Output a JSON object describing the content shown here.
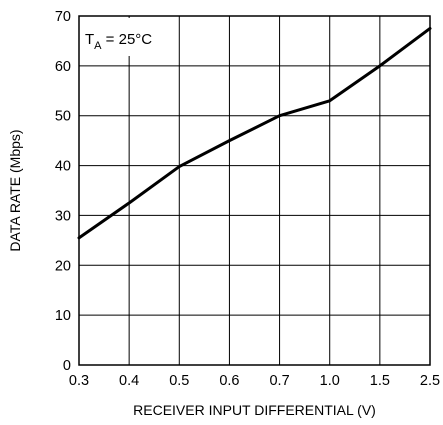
{
  "chart_data": {
    "type": "line",
    "title": "",
    "xlabel": "RECEIVER INPUT DIFFERENTIAL (V)",
    "ylabel": "DATA RATE (Mbps)",
    "x_scale": "categorical (unequal spacing)",
    "categories": [
      "0.3",
      "0.4",
      "0.5",
      "0.6",
      "0.7",
      "1.0",
      "1.5",
      "2.5"
    ],
    "ylim": [
      0,
      70
    ],
    "yticks": [
      0,
      10,
      20,
      30,
      40,
      50,
      60,
      70
    ],
    "grid": true,
    "annotation": {
      "main": "T",
      "subscript": "A",
      "rest": " = 25°C"
    },
    "series": [
      {
        "values": [
          25.5,
          32.5,
          39.8,
          45,
          50,
          53,
          60,
          67.5
        ]
      }
    ]
  }
}
